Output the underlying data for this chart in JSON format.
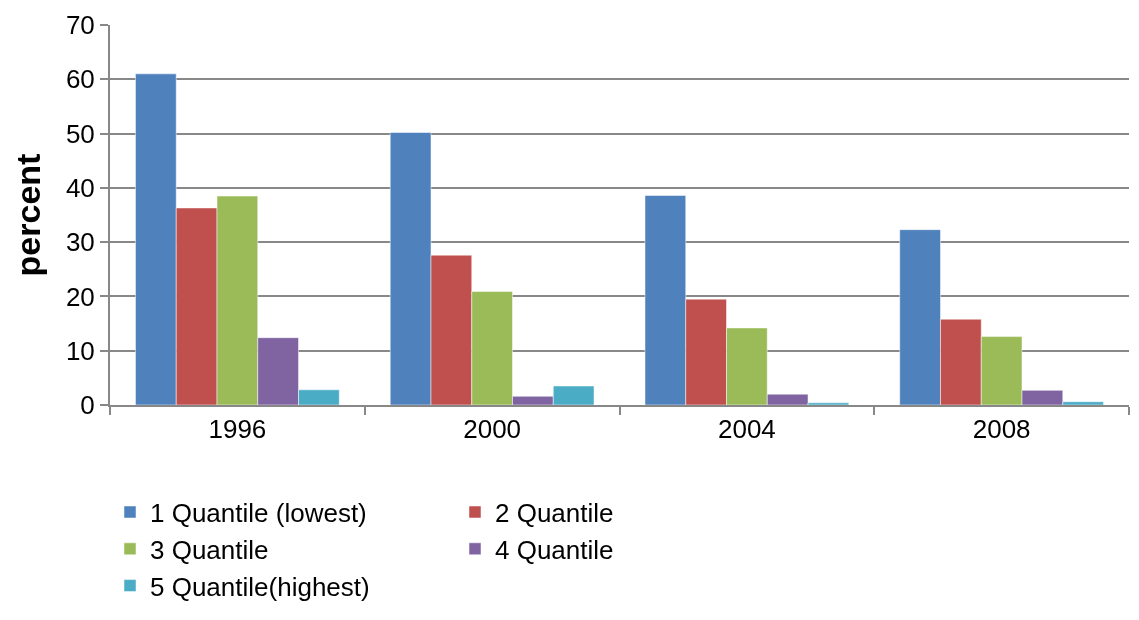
{
  "chart_data": {
    "type": "bar",
    "ylabel": "percent",
    "categories": [
      "1996",
      "2000",
      "2004",
      "2008"
    ],
    "series": [
      {
        "name": "1 Quantile (lowest)",
        "color": "#4f81bd",
        "values": [
          61.0,
          50.2,
          38.6,
          32.3
        ]
      },
      {
        "name": "2 Quantile",
        "color": "#c0504d",
        "values": [
          36.3,
          27.6,
          19.5,
          15.8
        ]
      },
      {
        "name": "3 Quantile",
        "color": "#9bbb59",
        "values": [
          38.5,
          20.9,
          14.2,
          12.6
        ]
      },
      {
        "name": "4 Quantile",
        "color": "#8064a2",
        "values": [
          12.4,
          1.6,
          2.0,
          2.7
        ]
      },
      {
        "name": "5 Quantile(highest)",
        "color": "#4bacc6",
        "values": [
          2.8,
          3.5,
          0.4,
          0.6
        ]
      }
    ],
    "ylim": [
      0,
      70
    ],
    "yticks": [
      0,
      10,
      20,
      30,
      40,
      50,
      60,
      70
    ],
    "grid": "y",
    "legend": "bottom"
  }
}
